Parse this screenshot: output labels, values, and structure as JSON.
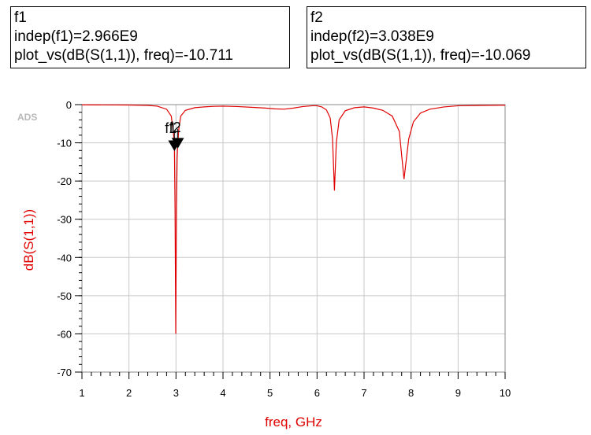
{
  "markers": [
    {
      "id": "f1",
      "name": "f1",
      "line1": "indep(f1)=2.966E9",
      "line2": "plot_vs(dB(S(1,1)), freq)=-10.711",
      "x": 2.966,
      "y": -10.711
    },
    {
      "id": "f2",
      "name": "f2",
      "line1": "indep(f2)=3.038E9",
      "line2": "plot_vs(dB(S(1,1)), freq)=-10.069",
      "x": 3.038,
      "y": -10.069
    }
  ],
  "watermark": "ADS",
  "chart_data": {
    "type": "line",
    "title": "",
    "xlabel": "freq, GHz",
    "ylabel": "dB(S(1,1))",
    "xlim": [
      1,
      10
    ],
    "ylim": [
      -70,
      0
    ],
    "xticks": [
      "1",
      "2",
      "3",
      "4",
      "5",
      "6",
      "7",
      "8",
      "9",
      "10"
    ],
    "yticks": [
      "0",
      "-10",
      "-20",
      "-30",
      "-40",
      "-50",
      "-60",
      "-70"
    ],
    "grid": true,
    "legend": "none",
    "series": [
      {
        "color": "#e00000",
        "points": [
          [
            1.0,
            -0.05
          ],
          [
            2.0,
            -0.1
          ],
          [
            2.4,
            -0.2
          ],
          [
            2.6,
            -0.4
          ],
          [
            2.8,
            -1.2
          ],
          [
            2.9,
            -3.0
          ],
          [
            2.95,
            -8.0
          ],
          [
            2.966,
            -10.711
          ],
          [
            2.98,
            -27.0
          ],
          [
            2.995,
            -60.0
          ],
          [
            3.01,
            -27.0
          ],
          [
            3.025,
            -14.0
          ],
          [
            3.038,
            -10.069
          ],
          [
            3.06,
            -6.5
          ],
          [
            3.1,
            -3.0
          ],
          [
            3.2,
            -1.5
          ],
          [
            3.4,
            -0.8
          ],
          [
            3.6,
            -0.6
          ],
          [
            3.8,
            -0.45
          ],
          [
            4.0,
            -0.4
          ],
          [
            4.3,
            -0.5
          ],
          [
            4.6,
            -0.7
          ],
          [
            4.9,
            -0.9
          ],
          [
            5.1,
            -1.1
          ],
          [
            5.3,
            -1.2
          ],
          [
            5.5,
            -0.9
          ],
          [
            5.7,
            -0.5
          ],
          [
            5.9,
            -0.3
          ],
          [
            6.0,
            -0.3
          ],
          [
            6.1,
            -0.6
          ],
          [
            6.2,
            -1.4
          ],
          [
            6.28,
            -3.5
          ],
          [
            6.33,
            -9.0
          ],
          [
            6.37,
            -22.5
          ],
          [
            6.41,
            -10.0
          ],
          [
            6.47,
            -4.0
          ],
          [
            6.6,
            -1.6
          ],
          [
            6.8,
            -0.8
          ],
          [
            7.0,
            -0.6
          ],
          [
            7.2,
            -0.9
          ],
          [
            7.4,
            -1.5
          ],
          [
            7.6,
            -3.0
          ],
          [
            7.75,
            -7.0
          ],
          [
            7.85,
            -19.5
          ],
          [
            7.95,
            -9.0
          ],
          [
            8.05,
            -4.5
          ],
          [
            8.2,
            -2.2
          ],
          [
            8.4,
            -1.2
          ],
          [
            8.7,
            -0.6
          ],
          [
            9.0,
            -0.3
          ],
          [
            9.5,
            -0.2
          ],
          [
            10.0,
            -0.15
          ]
        ]
      }
    ]
  }
}
